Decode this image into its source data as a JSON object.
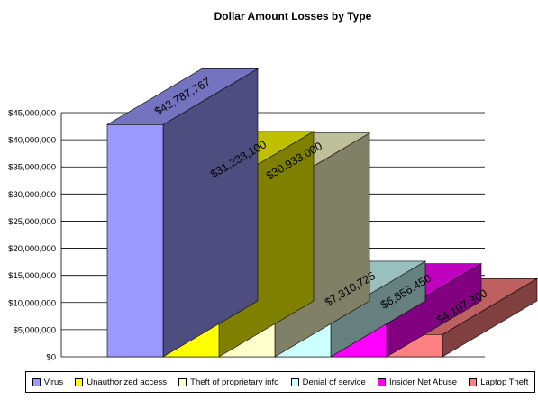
{
  "chart_data": {
    "type": "bar",
    "title": "Dollar Amount Losses by Type",
    "categories": [
      "Virus",
      "Unauthorized access",
      "Theft of proprietary info",
      "Denial of service",
      "Insider Net Abuse",
      "Laptop Theft"
    ],
    "values": [
      42787767,
      31233100,
      30933000,
      7310725,
      6856450,
      4107300
    ],
    "data_labels": [
      "$42,787,767",
      "$31,233,100",
      "$30,933,000",
      "$7,310,725",
      "$6,856,450",
      "$4,107,300"
    ],
    "colors": [
      "#9999ff",
      "#ffff00",
      "#ffffcc",
      "#ccffff",
      "#ff00ff",
      "#ff8080"
    ],
    "y_ticks": [
      "$0",
      "$5,000,000",
      "$10,000,000",
      "$15,000,000",
      "$20,000,000",
      "$25,000,000",
      "$30,000,000",
      "$35,000,000",
      "$40,000,000",
      "$45,000,000"
    ],
    "ylim": [
      0,
      45000000
    ],
    "grid": true,
    "style": "3d",
    "legend_position": "bottom"
  }
}
